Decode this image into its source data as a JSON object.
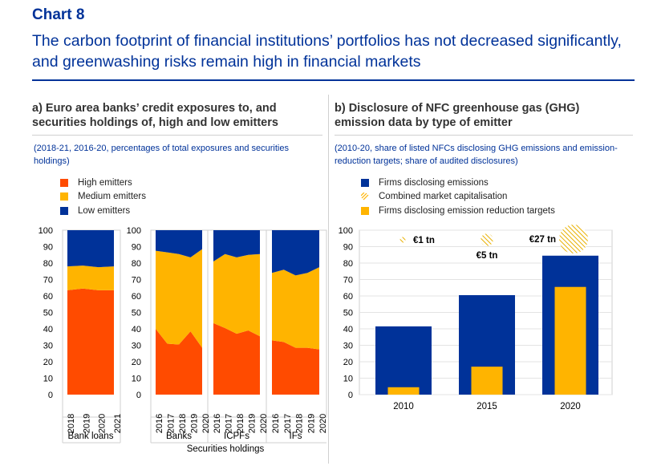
{
  "chart_label": "Chart 8",
  "chart_title": "The carbon footprint of financial institutions’ portfolios has not decreased significantly, and greenwashing risks remain high in financial markets",
  "colors": {
    "high": "#ff4b00",
    "medium": "#ffb400",
    "low": "#003299",
    "hatch": "#ffb400",
    "text_blue": "#003299"
  },
  "chart_data": [
    {
      "type": "area",
      "stacked": true,
      "title": "a) Euro area banks’ credit exposures to, and securities holdings of, high and low emitters",
      "subtitle": "(2018-21, 2016-20, percentages of total exposures and securities holdings)",
      "legend": [
        "High emitters",
        "Medium emitters",
        "Low emitters"
      ],
      "ylim": [
        0,
        100
      ],
      "yticks": [
        0,
        10,
        20,
        30,
        40,
        50,
        60,
        70,
        80,
        90,
        100
      ],
      "group_caption": "Securities holdings",
      "panels": [
        {
          "name": "Bank loans",
          "x": [
            "2018",
            "2019",
            "2020",
            "2021"
          ],
          "high": [
            63.5,
            64.5,
            63.5,
            63.5
          ],
          "medium": [
            14.5,
            14,
            14,
            14.5
          ],
          "low": [
            22,
            21.5,
            22.5,
            22
          ]
        },
        {
          "name": "Banks",
          "x": [
            "2016",
            "2017",
            "2018",
            "2019",
            "2020"
          ],
          "high": [
            40,
            31,
            30.5,
            38.5,
            28.5
          ],
          "medium": [
            47.5,
            55.5,
            55,
            45,
            60
          ],
          "low": [
            12.5,
            13.5,
            14.5,
            16.5,
            11.5
          ]
        },
        {
          "name": "ICPFs",
          "x": [
            "2016",
            "2017",
            "2018",
            "2019",
            "2020"
          ],
          "high": [
            43.5,
            40.5,
            37,
            39,
            35.5
          ],
          "medium": [
            37.5,
            45,
            46.5,
            46,
            50
          ],
          "low": [
            19,
            14.5,
            16.5,
            15,
            14.5
          ]
        },
        {
          "name": "IFs",
          "x": [
            "2016",
            "2017",
            "2018",
            "2019",
            "2020"
          ],
          "high": [
            33,
            32,
            28.5,
            28.5,
            27.5
          ],
          "medium": [
            41,
            44,
            44,
            45.5,
            50
          ],
          "low": [
            26,
            24,
            27.5,
            26,
            22.5
          ]
        }
      ]
    },
    {
      "type": "bar",
      "title": "b) Disclosure of NFC greenhouse gas (GHG) emission data by type of emitter",
      "subtitle": "(2010-20, share of listed NFCs disclosing GHG emissions and emission-reduction targets; share of audited disclosures)",
      "legend": [
        "Firms disclosing emissions",
        "Combined market capitalisation",
        "Firms disclosing emission reduction targets"
      ],
      "categories": [
        "2010",
        "2015",
        "2020"
      ],
      "series": [
        {
          "name": "Firms disclosing emissions",
          "values": [
            41.5,
            60.5,
            84.5
          ]
        },
        {
          "name": "Firms disclosing emission reduction targets",
          "values": [
            4.5,
            17,
            65.5
          ]
        }
      ],
      "market_cap_labels": [
        "€1 tn",
        "€5 tn",
        "€27 tn"
      ],
      "market_cap_values": [
        1,
        5,
        27
      ],
      "ylim": [
        0,
        100
      ],
      "yticks": [
        0,
        10,
        20,
        30,
        40,
        50,
        60,
        70,
        80,
        90,
        100
      ]
    }
  ]
}
